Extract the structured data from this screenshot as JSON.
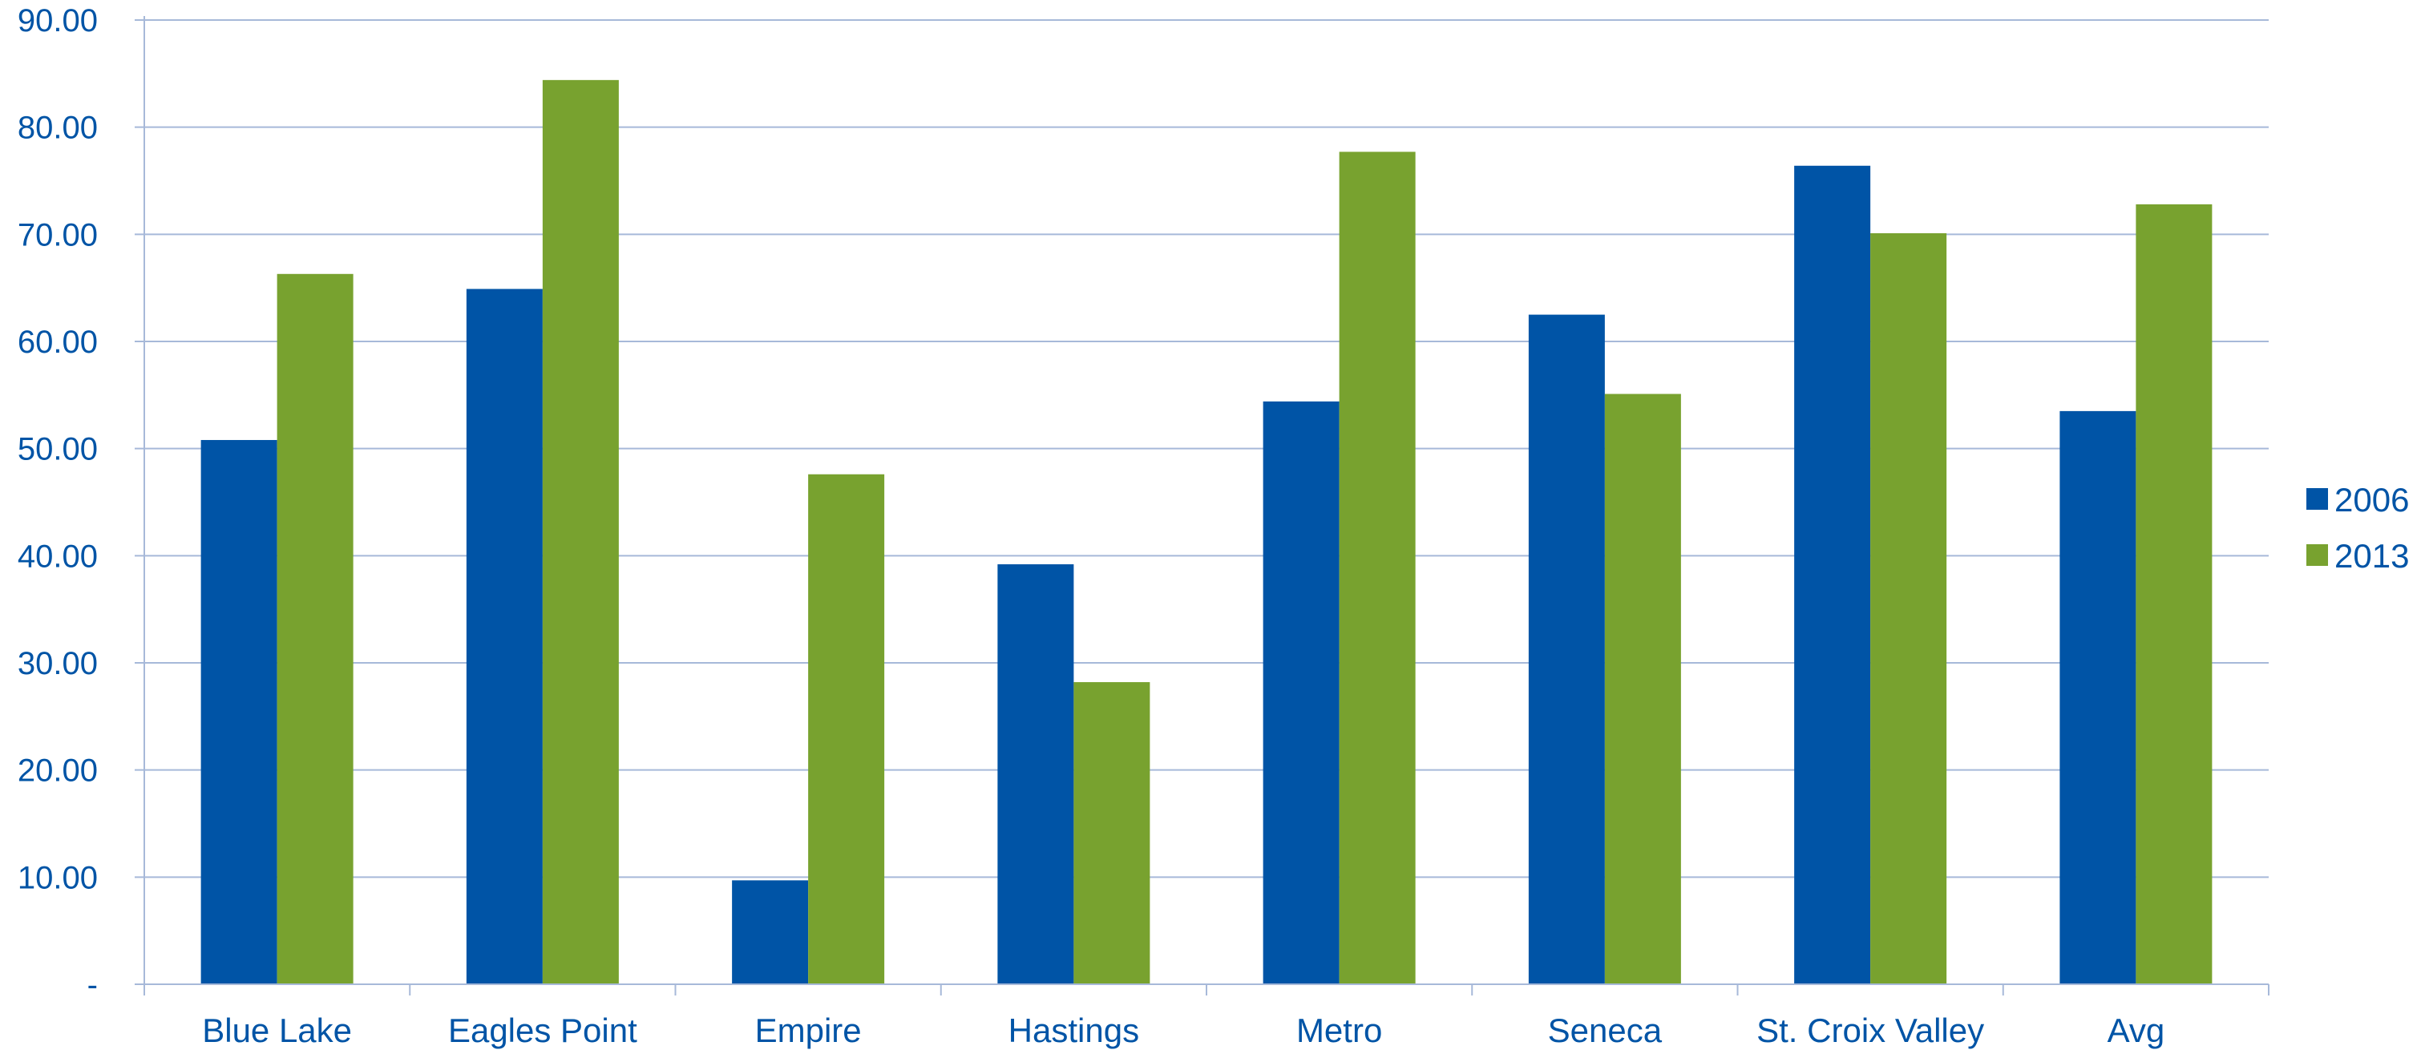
{
  "chart_data": {
    "type": "bar",
    "categories": [
      "Blue Lake",
      "Eagles Point",
      "Empire",
      "Hastings",
      "Metro",
      "Seneca",
      "St. Croix Valley",
      "Avg"
    ],
    "series": [
      {
        "name": "2006",
        "color": "#0054A6",
        "values": [
          50.8,
          64.9,
          9.7,
          39.2,
          54.4,
          62.5,
          76.4,
          53.5
        ]
      },
      {
        "name": "2013",
        "color": "#78A22F",
        "values": [
          66.3,
          84.4,
          47.6,
          28.2,
          77.7,
          55.1,
          70.1,
          72.8
        ]
      }
    ],
    "title": "",
    "xlabel": "",
    "ylabel": "",
    "ylim": [
      0,
      90
    ],
    "yticks": [
      0,
      10,
      20,
      30,
      40,
      50,
      60,
      70,
      80,
      90
    ],
    "ytick_labels": [
      "-",
      "10.00",
      "20.00",
      "30.00",
      "40.00",
      "50.00",
      "60.00",
      "70.00",
      "80.00",
      "90.00"
    ],
    "grid": true,
    "legend_position": "right",
    "text_color": "#0054A6",
    "grid_color": "#A7B9D9"
  }
}
